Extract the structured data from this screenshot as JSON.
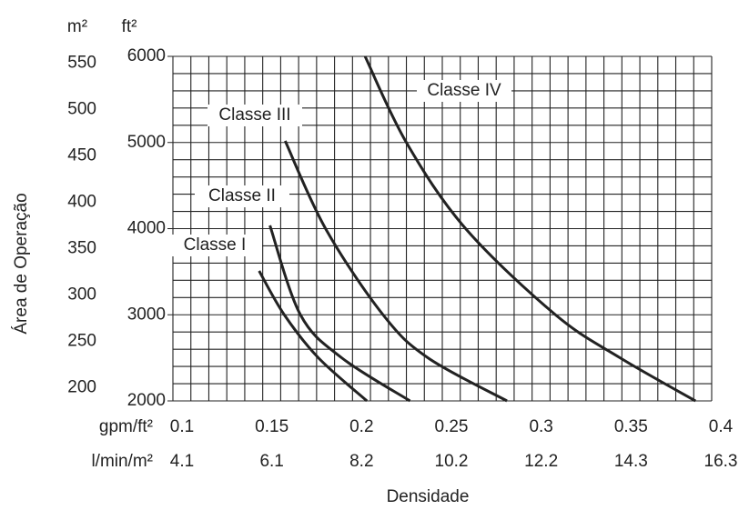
{
  "chart_data": {
    "type": "line",
    "xlabel": "Densidade",
    "ylabel": "Área de Operação",
    "y_unit": "ft²",
    "y2_unit": "m²",
    "x_unit": "gpm/ft²",
    "x2_unit": "l/min/m²",
    "xlim": [
      0.1,
      0.4
    ],
    "xticks": [
      0.1,
      0.15,
      0.2,
      0.25,
      0.3,
      0.35,
      0.4
    ],
    "x2ticks": [
      {
        "value": 0.1,
        "label": "4.1"
      },
      {
        "value": 0.15,
        "label": "6.1"
      },
      {
        "value": 0.2,
        "label": "8.2"
      },
      {
        "value": 0.25,
        "label": "10.2"
      },
      {
        "value": 0.3,
        "label": "12.2"
      },
      {
        "value": 0.35,
        "label": "14.3"
      },
      {
        "value": 0.4,
        "label": "16.3"
      }
    ],
    "ylim": [
      2000,
      6000
    ],
    "yticks": [
      2000,
      3000,
      4000,
      5000,
      6000
    ],
    "y2lim": [
      185.8,
      557.4
    ],
    "y2ticks": [
      200,
      250,
      300,
      350,
      400,
      450,
      500,
      550
    ],
    "grid": true,
    "minor_grid": 5,
    "color": "#222222",
    "series": [
      {
        "name": "Classe I",
        "x": [
          0.148,
          0.162,
          0.181,
          0.208
        ],
        "values": [
          3509,
          3000,
          2500,
          2000
        ]
      },
      {
        "name": "Classe II",
        "x": [
          0.154,
          0.171,
          0.194,
          0.232
        ],
        "values": [
          4037,
          3000,
          2500,
          2000
        ]
      },
      {
        "name": "Classe III",
        "x": [
          0.1625,
          0.185,
          0.217,
          0.242,
          0.286
        ],
        "values": [
          5018,
          4000,
          3000,
          2500,
          2000
        ]
      },
      {
        "name": "Classe IV",
        "x": [
          0.207,
          0.23,
          0.263,
          0.313,
          0.349,
          0.391
        ],
        "values": [
          6000,
          5000,
          4000,
          3000,
          2500,
          2000
        ]
      }
    ]
  }
}
